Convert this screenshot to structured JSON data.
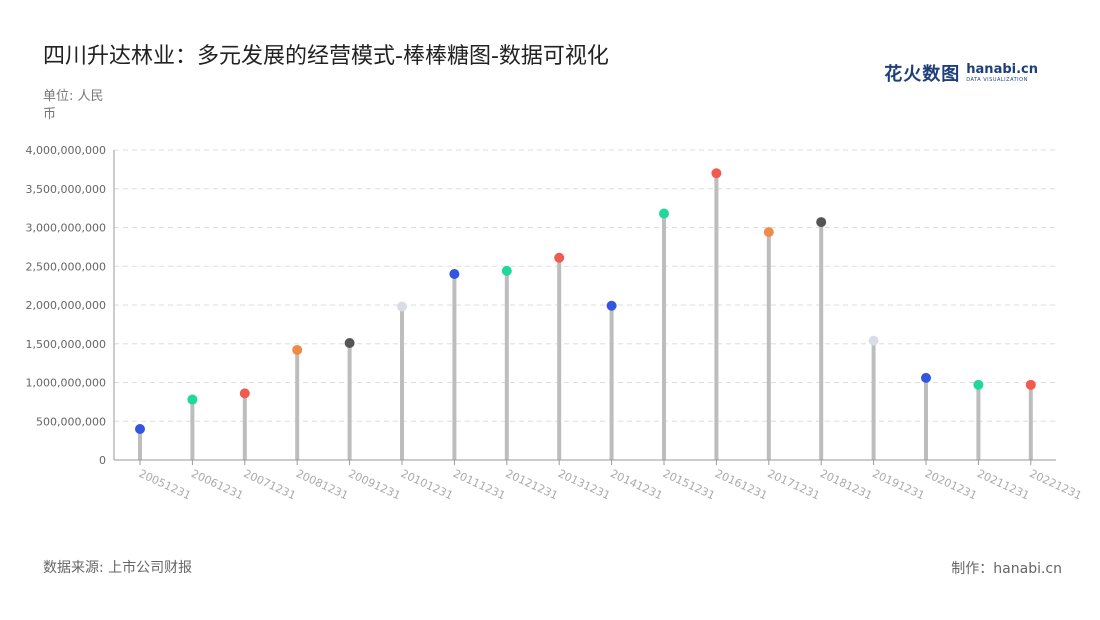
{
  "header": {
    "title": "四川升达林业：多元发展的经营模式-棒棒糖图-数据可视化",
    "unit": "单位: 人民币"
  },
  "logo": {
    "cn": "花火数图",
    "en": "hanabi.cn",
    "sub": "DATA VISUALIZATION"
  },
  "footer": {
    "source": "数据来源: 上市公司财报",
    "credit": "制作：hanabi.cn"
  },
  "chart_data": {
    "type": "lollipop",
    "title": "四川升达林业：多元发展的经营模式-棒棒糖图-数据可视化",
    "xlabel": "",
    "ylabel": "单位: 人民币",
    "ylim": [
      0,
      4000000000
    ],
    "yticks": [
      0,
      500000000,
      1000000000,
      1500000000,
      2000000000,
      2500000000,
      3000000000,
      3500000000,
      4000000000
    ],
    "ytick_labels": [
      "0",
      "500,000,000",
      "1,000,000,000",
      "1,500,000,000",
      "2,000,000,000",
      "2,500,000,000",
      "3,000,000,000",
      "3,500,000,000",
      "4,000,000,000"
    ],
    "grid": true,
    "categories": [
      "20051231",
      "20061231",
      "20071231",
      "20081231",
      "20091231",
      "20101231",
      "20111231",
      "20121231",
      "20131231",
      "20141231",
      "20151231",
      "20161231",
      "20171231",
      "20181231",
      "20191231",
      "20201231",
      "20211231",
      "20221231"
    ],
    "values": [
      400000000,
      780000000,
      860000000,
      1420000000,
      1510000000,
      1980000000,
      2400000000,
      2440000000,
      2610000000,
      1990000000,
      3180000000,
      3700000000,
      2940000000,
      3070000000,
      1540000000,
      1060000000,
      970000000,
      970000000
    ],
    "colors": [
      "#3355e0",
      "#1ed99a",
      "#f05a4f",
      "#f08a4a",
      "#555558",
      "#d9dde8",
      "#3355e0",
      "#1ed99a",
      "#f05a4f",
      "#3355e0",
      "#1ed99a",
      "#f05a4f",
      "#f08a4a",
      "#555558",
      "#d9dde8",
      "#3355e0",
      "#1ed99a",
      "#f05a4f"
    ],
    "stem_color": "#bdbdbd",
    "grid_color": "#dddddd",
    "axis_color": "#999999",
    "label_color": "#666666",
    "xlabel_color": "#aaaaaa"
  }
}
